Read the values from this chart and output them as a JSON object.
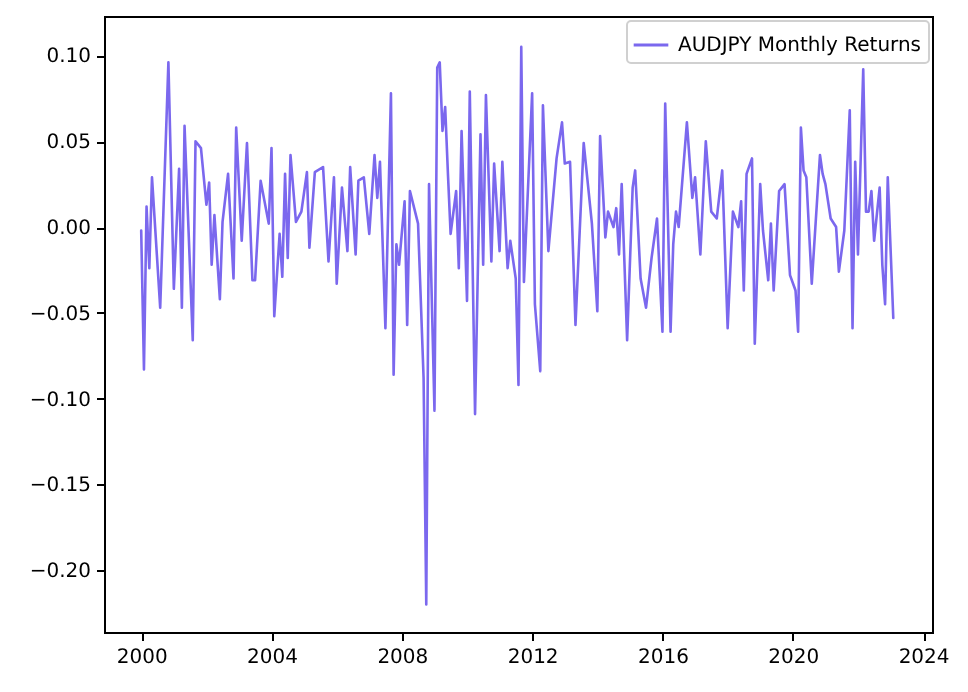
{
  "chart_data": {
    "type": "line",
    "x": [
      "2000-01",
      "2000-02",
      "2000-03",
      "2000-04",
      "2000-05",
      "2000-08",
      "2000-11",
      "2001-01",
      "2001-03",
      "2001-04",
      "2001-05",
      "2001-08",
      "2001-09",
      "2001-11",
      "2002-01",
      "2002-02",
      "2002-03",
      "2002-04",
      "2002-06",
      "2002-07",
      "2002-09",
      "2002-11",
      "2002-12",
      "2003-02",
      "2003-04",
      "2003-06",
      "2003-07",
      "2003-09",
      "2003-12",
      "2004-01",
      "2004-02",
      "2004-04",
      "2004-05",
      "2004-06",
      "2004-07",
      "2004-08",
      "2004-10",
      "2004-12",
      "2005-02",
      "2005-03",
      "2005-05",
      "2005-08",
      "2005-10",
      "2005-12",
      "2006-01",
      "2006-03",
      "2006-05",
      "2006-06",
      "2006-08",
      "2006-09",
      "2006-11",
      "2007-01",
      "2007-03",
      "2007-04",
      "2007-05",
      "2007-07",
      "2007-09",
      "2007-10",
      "2007-11",
      "2007-12",
      "2008-02",
      "2008-03",
      "2008-04",
      "2008-07",
      "2008-09",
      "2008-10",
      "2008-11",
      "2009-01",
      "2009-02",
      "2009-03",
      "2009-04",
      "2009-05",
      "2009-06",
      "2009-07",
      "2009-09",
      "2009-10",
      "2009-11",
      "2010-01",
      "2010-02",
      "2010-04",
      "2010-06",
      "2010-07",
      "2010-08",
      "2010-10",
      "2010-11",
      "2011-01",
      "2011-02",
      "2011-04",
      "2011-05",
      "2011-07",
      "2011-08",
      "2011-09",
      "2011-10",
      "2012-01",
      "2012-02",
      "2012-04",
      "2012-05",
      "2012-07",
      "2012-10",
      "2012-12",
      "2013-01",
      "2013-03",
      "2013-05",
      "2013-08",
      "2013-11",
      "2014-01",
      "2014-02",
      "2014-04",
      "2014-05",
      "2014-07",
      "2014-08",
      "2014-09",
      "2014-10",
      "2014-12",
      "2015-02",
      "2015-03",
      "2015-05",
      "2015-07",
      "2015-09",
      "2015-11",
      "2016-01",
      "2016-02",
      "2016-04",
      "2016-05",
      "2016-06",
      "2016-07",
      "2016-10",
      "2016-12",
      "2017-01",
      "2017-03",
      "2017-05",
      "2017-07",
      "2017-09",
      "2017-11",
      "2018-01",
      "2018-03",
      "2018-05",
      "2018-06",
      "2018-07",
      "2018-08",
      "2018-10",
      "2018-11",
      "2019-01",
      "2019-02",
      "2019-04",
      "2019-05",
      "2019-06",
      "2019-08",
      "2019-10",
      "2019-12",
      "2020-02",
      "2020-03",
      "2020-04",
      "2020-05",
      "2020-06",
      "2020-08",
      "2020-11",
      "2020-12",
      "2021-01",
      "2021-03",
      "2021-05",
      "2021-06",
      "2021-08",
      "2021-10",
      "2021-11",
      "2021-12",
      "2022-01",
      "2022-03",
      "2022-04",
      "2022-05",
      "2022-06",
      "2022-07",
      "2022-09",
      "2022-10",
      "2022-11",
      "2022-12",
      "2023-02"
    ],
    "series": [
      {
        "name": "AUDJPY Monthly Returns",
        "color": "#7b68ee",
        "values": [
          -0.002,
          -0.083,
          0.012,
          -0.024,
          0.029,
          -0.047,
          0.096,
          -0.036,
          0.034,
          -0.047,
          0.059,
          -0.066,
          0.05,
          0.046,
          0.013,
          0.026,
          -0.022,
          0.007,
          -0.042,
          0.003,
          0.031,
          -0.03,
          0.058,
          -0.008,
          0.049,
          -0.031,
          -0.031,
          0.027,
          0.002,
          0.046,
          -0.052,
          -0.004,
          -0.029,
          0.031,
          -0.018,
          0.042,
          0.003,
          0.009,
          0.032,
          -0.012,
          0.032,
          0.035,
          -0.02,
          0.029,
          -0.033,
          0.023,
          -0.014,
          0.035,
          -0.016,
          0.027,
          0.029,
          -0.004,
          0.042,
          0.017,
          0.038,
          -0.059,
          0.078,
          -0.086,
          -0.01,
          -0.022,
          0.015,
          -0.057,
          0.021,
          0.002,
          -0.088,
          -0.22,
          0.025,
          -0.107,
          0.093,
          0.096,
          0.056,
          0.07,
          0.031,
          -0.004,
          0.021,
          -0.024,
          0.056,
          -0.043,
          0.079,
          -0.109,
          0.054,
          -0.022,
          0.077,
          -0.02,
          0.037,
          -0.014,
          0.038,
          -0.024,
          -0.008,
          -0.03,
          -0.092,
          0.105,
          -0.032,
          0.078,
          -0.045,
          -0.084,
          0.071,
          -0.014,
          0.04,
          0.061,
          0.037,
          0.038,
          -0.057,
          0.049,
          0.002,
          -0.049,
          0.053,
          -0.006,
          0.009,
          0.0,
          0.011,
          -0.016,
          0.025,
          -0.066,
          0.023,
          0.033,
          -0.03,
          -0.047,
          -0.018,
          0.005,
          -0.061,
          0.072,
          -0.061,
          -0.01,
          0.009,
          0.0,
          0.061,
          0.017,
          0.029,
          -0.016,
          0.05,
          0.009,
          0.005,
          0.033,
          -0.059,
          0.009,
          0.0,
          0.015,
          -0.037,
          0.031,
          0.04,
          -0.068,
          0.025,
          -0.002,
          -0.031,
          0.002,
          -0.037,
          0.021,
          0.025,
          -0.028,
          -0.037,
          -0.061,
          0.058,
          0.033,
          0.029,
          -0.033,
          0.042,
          0.031,
          0.025,
          0.005,
          0.0,
          -0.026,
          -0.002,
          0.068,
          -0.059,
          0.038,
          -0.016,
          0.092,
          0.009,
          0.009,
          0.021,
          -0.008,
          0.023,
          -0.022,
          -0.045,
          0.029,
          -0.053
        ]
      }
    ],
    "xlim": [
      "1998-11-10",
      "2024-04-10"
    ],
    "xticks": [
      "2000",
      "2004",
      "2008",
      "2012",
      "2016",
      "2020",
      "2024"
    ],
    "ylim": [
      -0.236,
      0.123
    ],
    "yticks": [
      {
        "value": -0.2,
        "label": "−0.20"
      },
      {
        "value": -0.15,
        "label": "−0.15"
      },
      {
        "value": -0.1,
        "label": "−0.10"
      },
      {
        "value": -0.05,
        "label": "−0.05"
      },
      {
        "value": 0,
        "label": "0.00"
      },
      0.05,
      {
        "value": 0.1,
        "label": "0.10"
      }
    ],
    "legend": "top right",
    "grid": false,
    "line_style": "solid",
    "marker": "none"
  }
}
